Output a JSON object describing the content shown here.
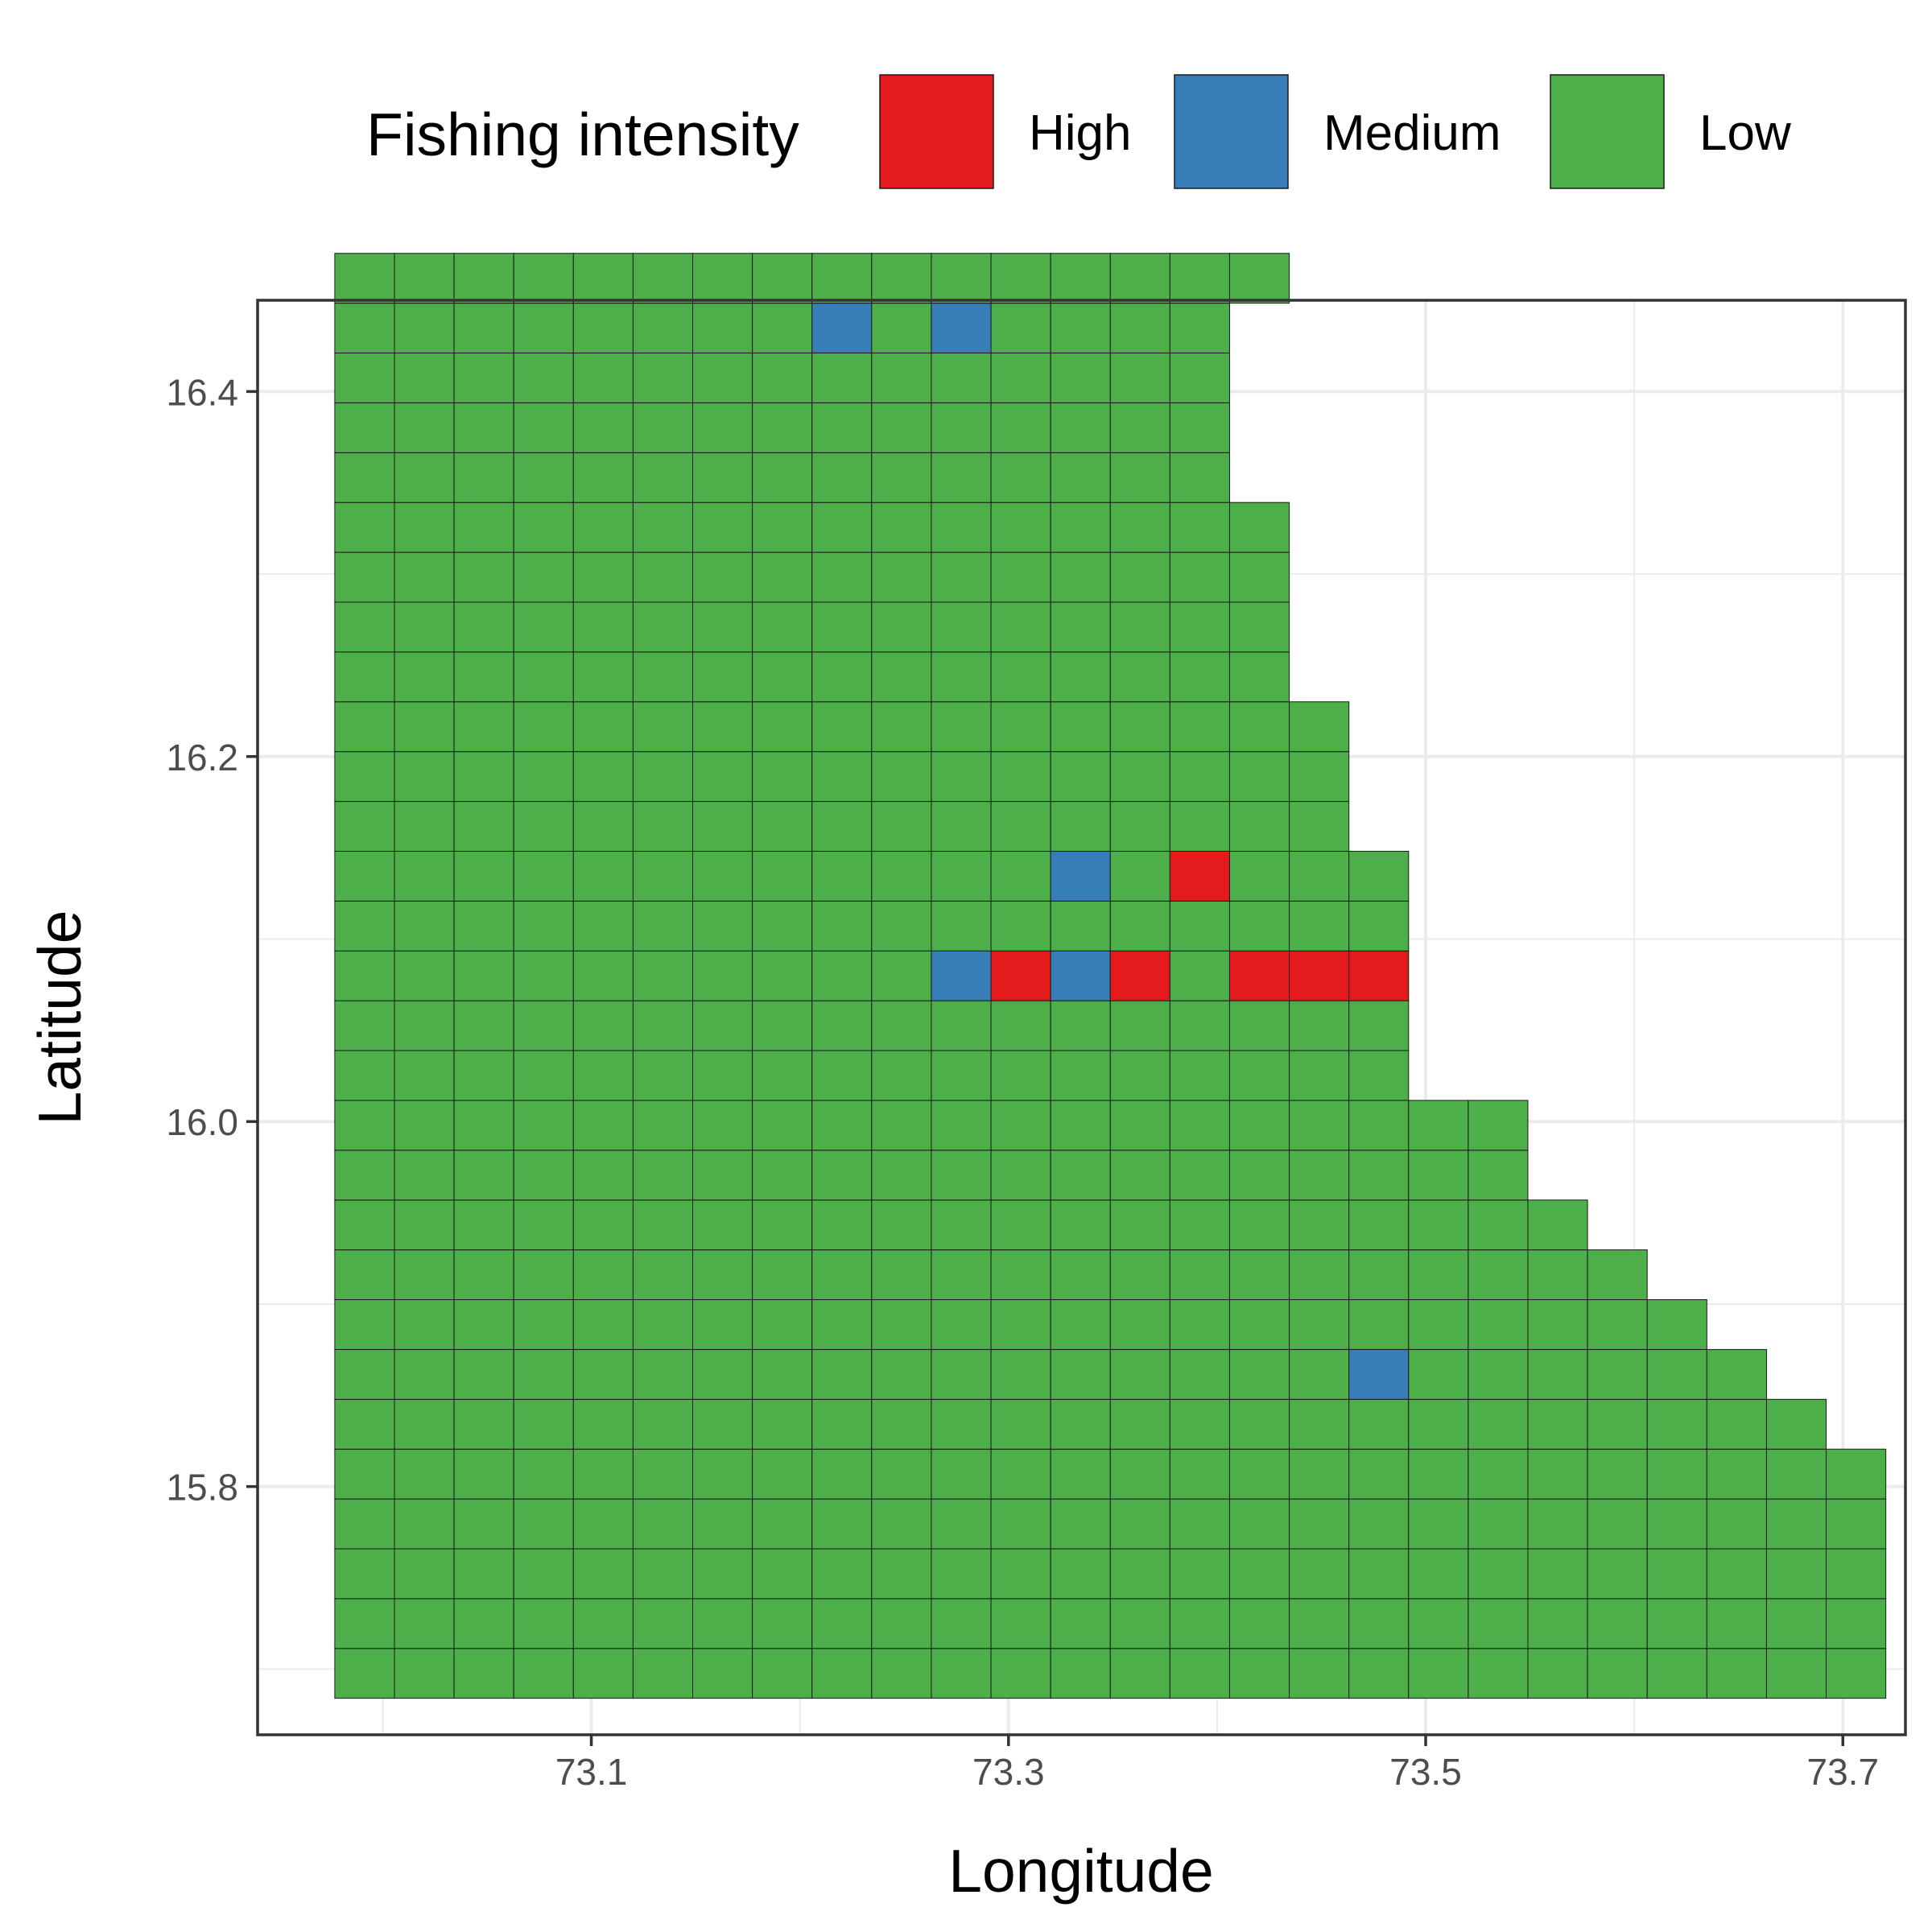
{
  "chart_data": {
    "type": "heatmap",
    "title": "",
    "xlabel": "Longitude",
    "ylabel": "Latitude",
    "xlim": [
      72.94,
      73.73
    ],
    "ylim": [
      15.664,
      16.45
    ],
    "x_ticks": [
      "73.1",
      "73.3",
      "73.5",
      "73.7"
    ],
    "y_ticks": [
      "15.8",
      "16.0",
      "16.2",
      "16.4"
    ],
    "grid": true,
    "legend": {
      "title": "Fishing intensity",
      "position": "top",
      "items": [
        {
          "label": "High",
          "color": "#E41A1C"
        },
        {
          "label": "Medium",
          "color": "#377EB8"
        },
        {
          "label": "Low",
          "color": "#4DAF4A"
        }
      ]
    },
    "cell_size": {
      "lon": 0.0286,
      "lat": 0.0273
    },
    "grid_origin": {
      "lon": 72.977,
      "lat": 15.684
    },
    "rows_bottom_to_top": [
      26,
      26,
      26,
      26,
      26,
      25,
      24,
      23,
      22,
      21,
      20,
      20,
      18,
      18,
      18,
      18,
      18,
      17,
      17,
      17,
      16,
      16,
      16,
      16,
      15,
      15,
      15,
      15,
      16
    ],
    "special_cells": [
      {
        "col": 8,
        "row": 27,
        "level": "Medium"
      },
      {
        "col": 10,
        "row": 27,
        "level": "Medium"
      },
      {
        "col": 12,
        "row": 16,
        "level": "Medium"
      },
      {
        "col": 14,
        "row": 16,
        "level": "High"
      },
      {
        "col": 10,
        "row": 14,
        "level": "Medium"
      },
      {
        "col": 11,
        "row": 14,
        "level": "High"
      },
      {
        "col": 12,
        "row": 14,
        "level": "Medium"
      },
      {
        "col": 13,
        "row": 14,
        "level": "High"
      },
      {
        "col": 15,
        "row": 14,
        "level": "High"
      },
      {
        "col": 16,
        "row": 14,
        "level": "High"
      },
      {
        "col": 17,
        "row": 14,
        "level": "High"
      },
      {
        "col": 17,
        "row": 6,
        "level": "Medium"
      }
    ]
  }
}
